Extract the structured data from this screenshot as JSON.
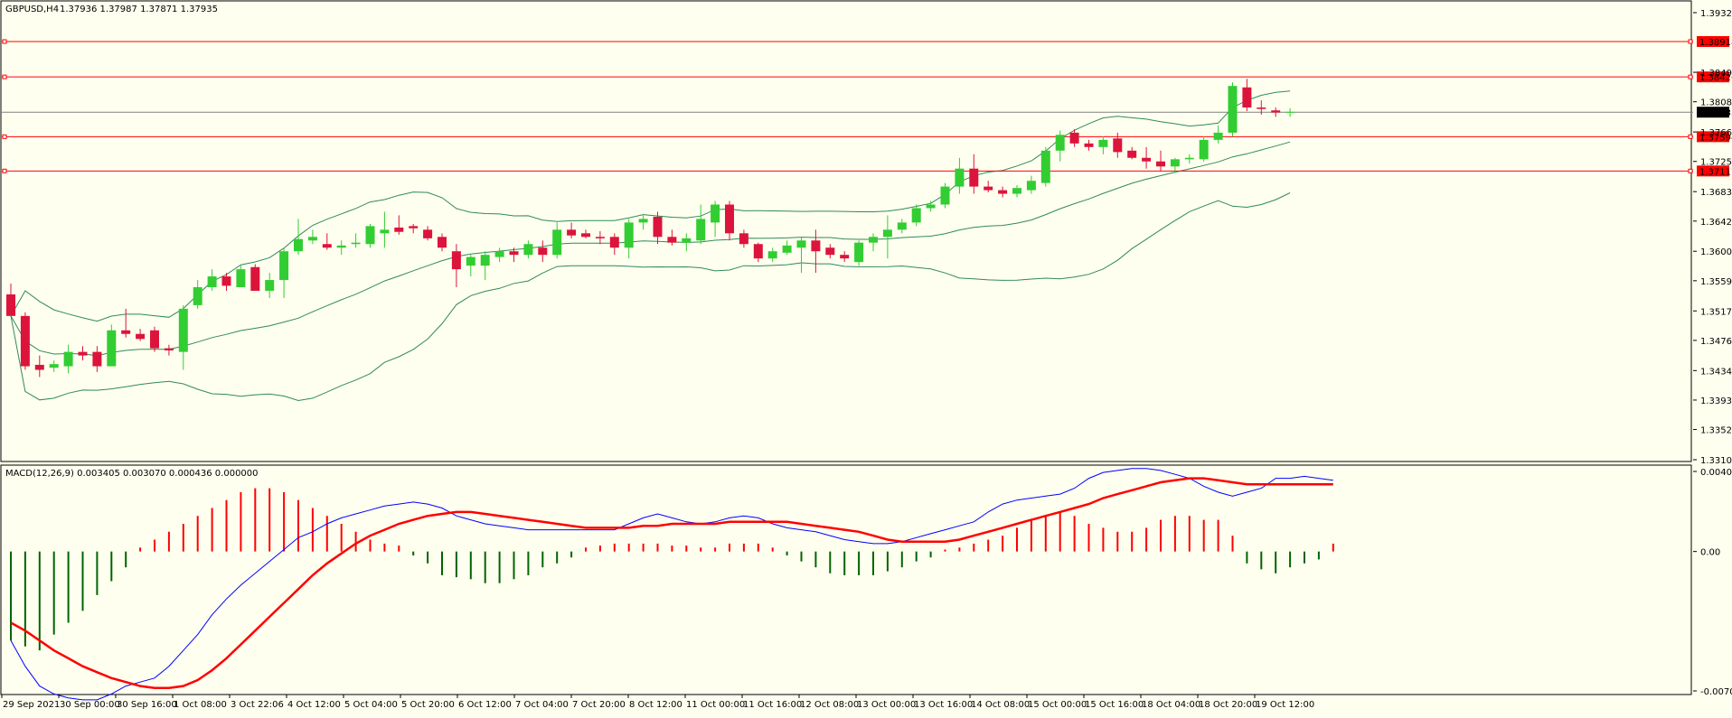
{
  "main": {
    "header": {
      "symbol": "GBPUSD,H4",
      "ohlc": "1.37936 1.37987 1.37871 1.37935"
    },
    "price_scale": [
      "1.39320",
      "1.38918",
      "1.38426",
      "1.38490",
      "1.38080",
      "1.37935",
      "1.37660",
      "1.37594",
      "1.37250",
      "1.37117",
      "1.36830",
      "1.36420",
      "1.36000",
      "1.35590",
      "1.35170",
      "1.34760",
      "1.34340",
      "1.33930",
      "1.33520",
      "1.33100"
    ],
    "current_price": "1.37935",
    "hlines": [
      {
        "label": "1.38918",
        "value": 1.38918
      },
      {
        "label": "1.38426",
        "value": 1.38426
      },
      {
        "label": "1.37594",
        "value": 1.37594
      },
      {
        "label": "1.37117",
        "value": 1.37117
      }
    ]
  },
  "macd": {
    "title": "MACD(12,26,9) 0.003405 0.003070 0.000436 0.000000",
    "scale": [
      "0.004048",
      "0.00",
      "-0.007047"
    ]
  },
  "time_axis": [
    "29 Sep 2021",
    "30 Sep 00:00",
    "30 Sep 16:00",
    "1 Oct 08:00",
    "3 Oct 22:06",
    "4 Oct 12:00",
    "5 Oct 04:00",
    "5 Oct 20:00",
    "6 Oct 12:00",
    "7 Oct 04:00",
    "7 Oct 20:00",
    "8 Oct 12:00",
    "11 Oct 00:00",
    "11 Oct 16:00",
    "12 Oct 08:00",
    "13 Oct 00:00",
    "13 Oct 16:00",
    "14 Oct 08:00",
    "15 Oct 00:00",
    "15 Oct 16:00",
    "18 Oct 04:00",
    "18 Oct 20:00",
    "19 Oct 12:00"
  ],
  "colors": {
    "background": "#FFFFF0",
    "bull": "#32CD32",
    "bear": "#DC143C",
    "band": "#2E8B57",
    "hline": "#FF0000",
    "price_line": "#808080",
    "macd_main": "#0000FF",
    "macd_signal": "#FF0000",
    "hist_pos": "#FF0000",
    "hist_neg": "#006400"
  },
  "chart_data": [
    {
      "type": "candlestick",
      "title": "GBPUSD,H4",
      "ylim": [
        1.331,
        1.3932
      ],
      "hlines": [
        1.38918,
        1.38426,
        1.37594,
        1.37117
      ],
      "ohlc": [
        [
          1.354,
          1.3555,
          1.351,
          1.351
        ],
        [
          1.351,
          1.3515,
          1.3435,
          1.344
        ],
        [
          1.3442,
          1.3455,
          1.3425,
          1.3435
        ],
        [
          1.3438,
          1.3448,
          1.3432,
          1.3443
        ],
        [
          1.344,
          1.347,
          1.343,
          1.346
        ],
        [
          1.346,
          1.3468,
          1.3448,
          1.3455
        ],
        [
          1.346,
          1.3468,
          1.3432,
          1.344
        ],
        [
          1.344,
          1.3498,
          1.344,
          1.349
        ],
        [
          1.349,
          1.352,
          1.348,
          1.3485
        ],
        [
          1.3485,
          1.3492,
          1.3475,
          1.3478
        ],
        [
          1.349,
          1.3495,
          1.346,
          1.3465
        ],
        [
          1.3465,
          1.347,
          1.3455,
          1.3462
        ],
        [
          1.346,
          1.3525,
          1.3435,
          1.352
        ],
        [
          1.3525,
          1.356,
          1.352,
          1.355
        ],
        [
          1.355,
          1.3575,
          1.3545,
          1.3565
        ],
        [
          1.3565,
          1.357,
          1.3545,
          1.3552
        ],
        [
          1.355,
          1.358,
          1.355,
          1.3575
        ],
        [
          1.3578,
          1.3582,
          1.3545,
          1.3545
        ],
        [
          1.3545,
          1.357,
          1.3535,
          1.356
        ],
        [
          1.356,
          1.3605,
          1.3535,
          1.36
        ],
        [
          1.36,
          1.3645,
          1.3595,
          1.3617
        ],
        [
          1.3615,
          1.363,
          1.361,
          1.362
        ],
        [
          1.361,
          1.3625,
          1.3602,
          1.3605
        ],
        [
          1.3605,
          1.3615,
          1.3595,
          1.3608
        ],
        [
          1.361,
          1.3625,
          1.3605,
          1.3612
        ],
        [
          1.361,
          1.3638,
          1.3605,
          1.3635
        ],
        [
          1.3625,
          1.3655,
          1.3605,
          1.363
        ],
        [
          1.3633,
          1.365,
          1.3623,
          1.3627
        ],
        [
          1.3635,
          1.3638,
          1.3625,
          1.3632
        ],
        [
          1.363,
          1.3635,
          1.3615,
          1.3618
        ],
        [
          1.362,
          1.3625,
          1.36,
          1.3605
        ],
        [
          1.36,
          1.361,
          1.355,
          1.3575
        ],
        [
          1.358,
          1.3595,
          1.3565,
          1.3592
        ],
        [
          1.358,
          1.36,
          1.356,
          1.3595
        ],
        [
          1.3592,
          1.3605,
          1.3585,
          1.36
        ],
        [
          1.36,
          1.3605,
          1.3585,
          1.3595
        ],
        [
          1.3595,
          1.3615,
          1.359,
          1.361
        ],
        [
          1.3605,
          1.3615,
          1.3585,
          1.3595
        ],
        [
          1.3595,
          1.364,
          1.359,
          1.363
        ],
        [
          1.363,
          1.364,
          1.3618,
          1.3622
        ],
        [
          1.3625,
          1.363,
          1.3618,
          1.362
        ],
        [
          1.362,
          1.3628,
          1.361,
          1.3618
        ],
        [
          1.362,
          1.3625,
          1.3595,
          1.3605
        ],
        [
          1.3605,
          1.3645,
          1.359,
          1.364
        ],
        [
          1.364,
          1.365,
          1.363,
          1.3645
        ],
        [
          1.3648,
          1.3655,
          1.361,
          1.362
        ],
        [
          1.362,
          1.363,
          1.3608,
          1.3612
        ],
        [
          1.3612,
          1.3625,
          1.36,
          1.3618
        ],
        [
          1.3615,
          1.3665,
          1.361,
          1.3645
        ],
        [
          1.364,
          1.367,
          1.362,
          1.3665
        ],
        [
          1.3665,
          1.367,
          1.3615,
          1.3625
        ],
        [
          1.3625,
          1.363,
          1.3605,
          1.361
        ],
        [
          1.361,
          1.3612,
          1.3585,
          1.359
        ],
        [
          1.359,
          1.3605,
          1.3585,
          1.36
        ],
        [
          1.3598,
          1.3615,
          1.3595,
          1.3608
        ],
        [
          1.3605,
          1.362,
          1.357,
          1.3615
        ],
        [
          1.3615,
          1.363,
          1.357,
          1.36
        ],
        [
          1.3605,
          1.361,
          1.359,
          1.3595
        ],
        [
          1.3595,
          1.36,
          1.3585,
          1.359
        ],
        [
          1.3585,
          1.3615,
          1.358,
          1.3612
        ],
        [
          1.3612,
          1.3625,
          1.36,
          1.362
        ],
        [
          1.362,
          1.365,
          1.359,
          1.363
        ],
        [
          1.363,
          1.3645,
          1.3625,
          1.364
        ],
        [
          1.364,
          1.3665,
          1.3635,
          1.366
        ],
        [
          1.366,
          1.367,
          1.3655,
          1.3665
        ],
        [
          1.3665,
          1.3695,
          1.366,
          1.369
        ],
        [
          1.369,
          1.373,
          1.368,
          1.3715
        ],
        [
          1.3715,
          1.3735,
          1.368,
          1.369
        ],
        [
          1.369,
          1.3698,
          1.3682,
          1.3685
        ],
        [
          1.3685,
          1.369,
          1.3675,
          1.368
        ],
        [
          1.368,
          1.3692,
          1.3675,
          1.3688
        ],
        [
          1.3685,
          1.3705,
          1.368,
          1.3698
        ],
        [
          1.3695,
          1.3745,
          1.369,
          1.374
        ],
        [
          1.374,
          1.3768,
          1.3725,
          1.3762
        ],
        [
          1.3765,
          1.377,
          1.3745,
          1.375
        ],
        [
          1.375,
          1.3755,
          1.374,
          1.3745
        ],
        [
          1.3745,
          1.376,
          1.3735,
          1.3755
        ],
        [
          1.3757,
          1.3765,
          1.373,
          1.3738
        ],
        [
          1.374,
          1.3745,
          1.3728,
          1.373
        ],
        [
          1.373,
          1.3745,
          1.3715,
          1.3725
        ],
        [
          1.3725,
          1.374,
          1.3712,
          1.3718
        ],
        [
          1.3718,
          1.373,
          1.371,
          1.3728
        ],
        [
          1.3728,
          1.3735,
          1.3722,
          1.373
        ],
        [
          1.3728,
          1.376,
          1.3725,
          1.3755
        ],
        [
          1.3755,
          1.3775,
          1.375,
          1.3765
        ],
        [
          1.3765,
          1.3835,
          1.376,
          1.383
        ],
        [
          1.3828,
          1.384,
          1.3795,
          1.38
        ],
        [
          1.38,
          1.381,
          1.379,
          1.3798
        ],
        [
          1.3796,
          1.38,
          1.3787,
          1.3793
        ],
        [
          1.3794,
          1.3799,
          1.3787,
          1.3794
        ]
      ]
    },
    {
      "type": "line",
      "title": "MACD(12,26,9) 0.003405 0.003070 0.000436 0.000000",
      "ylim": [
        -0.007047,
        0.004048
      ],
      "series": [
        {
          "name": "MACD main",
          "values": [
            -0.0045,
            -0.0058,
            -0.0068,
            -0.0072,
            -0.0074,
            -0.0075,
            -0.0075,
            -0.0072,
            -0.0068,
            -0.0066,
            -0.0064,
            -0.0058,
            -0.005,
            -0.0042,
            -0.0032,
            -0.0024,
            -0.0017,
            -0.0011,
            -0.0005,
            0.0001,
            0.0007,
            0.001,
            0.0014,
            0.0017,
            0.0019,
            0.0021,
            0.0023,
            0.0024,
            0.0025,
            0.0024,
            0.0022,
            0.0018,
            0.0016,
            0.0014,
            0.0013,
            0.0012,
            0.0011,
            0.0011,
            0.0011,
            0.0011,
            0.0011,
            0.0011,
            0.0011,
            0.0014,
            0.0017,
            0.0019,
            0.0017,
            0.0015,
            0.0014,
            0.0015,
            0.0017,
            0.0018,
            0.0017,
            0.0014,
            0.0012,
            0.0011,
            0.001,
            0.0008,
            0.0006,
            0.0005,
            0.0004,
            0.0004,
            0.0005,
            0.0007,
            0.0009,
            0.0011,
            0.0013,
            0.0015,
            0.002,
            0.0024,
            0.0026,
            0.0027,
            0.0028,
            0.0029,
            0.0032,
            0.0037,
            0.004,
            0.0041,
            0.0042,
            0.0042,
            0.0041,
            0.0039,
            0.0037,
            0.0033,
            0.003,
            0.0028,
            0.003,
            0.0032,
            0.0037,
            0.0037,
            0.0038,
            0.0037,
            0.0036
          ]
        },
        {
          "name": "MACD signal",
          "values": [
            -0.0036,
            -0.004,
            -0.0045,
            -0.005,
            -0.0054,
            -0.0058,
            -0.0061,
            -0.0064,
            -0.0066,
            -0.0068,
            -0.0069,
            -0.0069,
            -0.0068,
            -0.0065,
            -0.006,
            -0.0054,
            -0.0047,
            -0.004,
            -0.0033,
            -0.0026,
            -0.0019,
            -0.0012,
            -0.0006,
            -0.0001,
            0.0004,
            0.0008,
            0.0011,
            0.0014,
            0.0016,
            0.0018,
            0.0019,
            0.002,
            0.002,
            0.0019,
            0.0018,
            0.0017,
            0.0016,
            0.0015,
            0.0014,
            0.0013,
            0.0012,
            0.0012,
            0.0012,
            0.0012,
            0.0013,
            0.0013,
            0.0014,
            0.0014,
            0.0014,
            0.0014,
            0.0015,
            0.0015,
            0.0015,
            0.0015,
            0.0015,
            0.0014,
            0.0013,
            0.0012,
            0.0011,
            0.001,
            0.0008,
            0.0006,
            0.0005,
            0.0005,
            0.0005,
            0.0005,
            0.0006,
            0.0008,
            0.001,
            0.0012,
            0.0014,
            0.0016,
            0.0018,
            0.002,
            0.0022,
            0.0024,
            0.0027,
            0.0029,
            0.0031,
            0.0033,
            0.0035,
            0.0036,
            0.0037,
            0.0037,
            0.0036,
            0.0035,
            0.0034,
            0.0034,
            0.0034,
            0.0034,
            0.0034,
            0.0034,
            0.0034
          ]
        },
        {
          "name": "Histogram",
          "values": [
            -0.0045,
            -0.0048,
            -0.005,
            -0.0042,
            -0.0036,
            -0.003,
            -0.0022,
            -0.0015,
            -0.0008,
            0.0002,
            0.0006,
            0.001,
            0.0014,
            0.0018,
            0.0022,
            0.0026,
            0.003,
            0.0032,
            0.0032,
            0.003,
            0.0026,
            0.0022,
            0.0018,
            0.0014,
            0.001,
            0.0006,
            0.0004,
            0.0003,
            -0.0002,
            -0.0006,
            -0.0012,
            -0.0013,
            -0.0014,
            -0.0016,
            -0.0016,
            -0.0014,
            -0.0012,
            -0.0008,
            -0.0006,
            -0.0003,
            0.0002,
            0.0003,
            0.0004,
            0.0004,
            0.0004,
            0.0004,
            0.0003,
            0.0003,
            0.0002,
            0.0002,
            0.0004,
            0.0004,
            0.0004,
            0.0002,
            -0.0002,
            -0.0005,
            -0.0008,
            -0.0011,
            -0.0012,
            -0.0012,
            -0.0012,
            -0.001,
            -0.0008,
            -0.0005,
            -0.0003,
            0.0001,
            0.0002,
            0.0004,
            0.0006,
            0.0008,
            0.0012,
            0.0016,
            0.0018,
            0.002,
            0.0018,
            0.0014,
            0.0012,
            0.001,
            0.001,
            0.0012,
            0.0016,
            0.0018,
            0.0018,
            0.0016,
            0.0016,
            0.0008,
            -0.0006,
            -0.0009,
            -0.0011,
            -0.0008,
            -0.0006,
            -0.0004,
            0.0004
          ]
        }
      ]
    }
  ]
}
